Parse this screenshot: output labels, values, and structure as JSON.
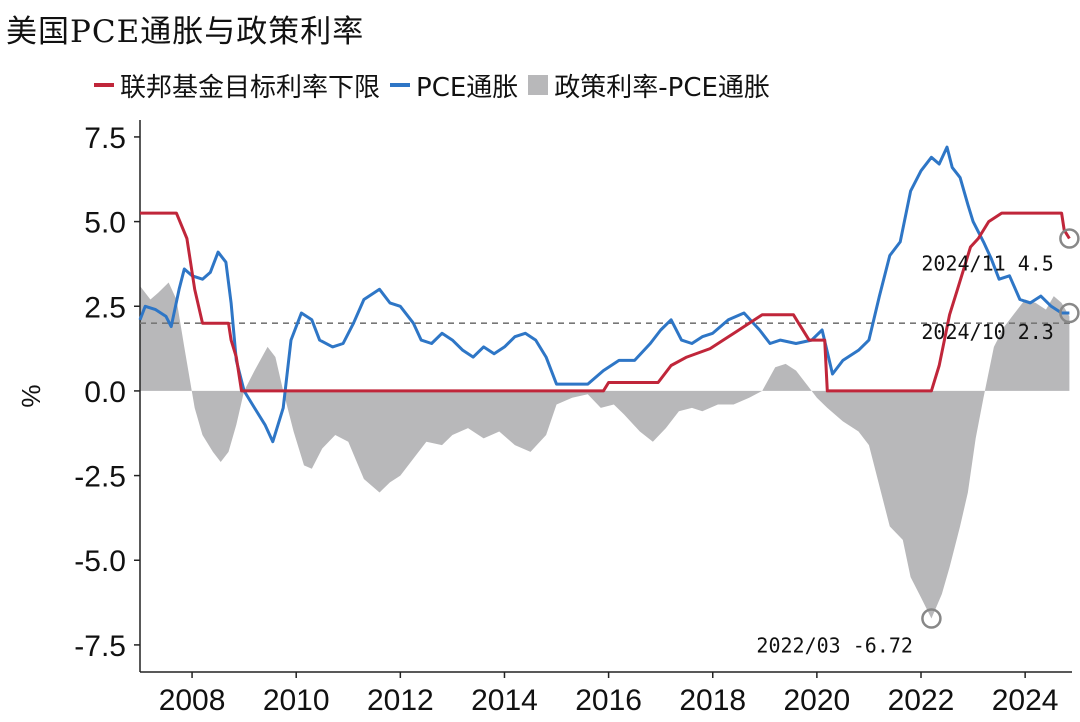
{
  "title": "美国PCE通胀与政策利率",
  "legend": [
    {
      "label": "联邦基金目标利率下限",
      "color": "#c0263a",
      "kind": "line"
    },
    {
      "label": "PCE通胀",
      "color": "#2e76c6",
      "kind": "line"
    },
    {
      "label": "政策利率-PCE通胀",
      "color": "#b8b8ba",
      "kind": "area"
    }
  ],
  "chart_data": {
    "type": "line",
    "title": "美国PCE通胀与政策利率",
    "ylabel": "%",
    "xlabel": "",
    "xlim": [
      2007.0,
      2024.9
    ],
    "ylim": [
      -8.3,
      8.0
    ],
    "x_ticks": [
      "2008",
      "2010",
      "2012",
      "2014",
      "2016",
      "2018",
      "2020",
      "2022",
      "2024"
    ],
    "y_ticks": [
      "7.5",
      "5.0",
      "2.5",
      "0.0",
      "-2.5",
      "-5.0",
      "-7.5"
    ],
    "reference_line": {
      "y": 2.0,
      "style": "dashed"
    },
    "series": [
      {
        "name": "联邦基金目标利率下限",
        "color": "#c0263a",
        "points": [
          [
            2007.0,
            5.25
          ],
          [
            2007.7,
            5.25
          ],
          [
            2007.9,
            4.5
          ],
          [
            2008.05,
            3.0
          ],
          [
            2008.2,
            2.0
          ],
          [
            2008.7,
            2.0
          ],
          [
            2008.75,
            1.5
          ],
          [
            2008.85,
            1.0
          ],
          [
            2008.95,
            0.0
          ],
          [
            2015.9,
            0.0
          ],
          [
            2016.0,
            0.25
          ],
          [
            2016.95,
            0.25
          ],
          [
            2017.2,
            0.75
          ],
          [
            2017.5,
            1.0
          ],
          [
            2017.95,
            1.25
          ],
          [
            2018.2,
            1.5
          ],
          [
            2018.45,
            1.75
          ],
          [
            2018.7,
            2.0
          ],
          [
            2018.95,
            2.25
          ],
          [
            2019.55,
            2.25
          ],
          [
            2019.65,
            2.0
          ],
          [
            2019.75,
            1.75
          ],
          [
            2019.85,
            1.5
          ],
          [
            2020.15,
            1.5
          ],
          [
            2020.2,
            0.0
          ],
          [
            2022.2,
            0.0
          ],
          [
            2022.35,
            0.75
          ],
          [
            2022.45,
            1.5
          ],
          [
            2022.55,
            2.25
          ],
          [
            2022.7,
            3.0
          ],
          [
            2022.85,
            3.75
          ],
          [
            2022.95,
            4.25
          ],
          [
            2023.1,
            4.5
          ],
          [
            2023.3,
            5.0
          ],
          [
            2023.55,
            5.25
          ],
          [
            2024.7,
            5.25
          ],
          [
            2024.75,
            4.75
          ],
          [
            2024.85,
            4.5
          ]
        ]
      },
      {
        "name": "PCE通胀",
        "color": "#2e76c6",
        "points": [
          [
            2007.0,
            2.1
          ],
          [
            2007.1,
            2.5
          ],
          [
            2007.3,
            2.4
          ],
          [
            2007.5,
            2.2
          ],
          [
            2007.6,
            1.9
          ],
          [
            2007.75,
            3.0
          ],
          [
            2007.85,
            3.6
          ],
          [
            2008.0,
            3.4
          ],
          [
            2008.2,
            3.3
          ],
          [
            2008.35,
            3.5
          ],
          [
            2008.5,
            4.1
          ],
          [
            2008.65,
            3.8
          ],
          [
            2008.75,
            2.6
          ],
          [
            2008.85,
            0.9
          ],
          [
            2009.0,
            0.0
          ],
          [
            2009.2,
            -0.5
          ],
          [
            2009.4,
            -1.0
          ],
          [
            2009.55,
            -1.5
          ],
          [
            2009.75,
            -0.5
          ],
          [
            2009.9,
            1.5
          ],
          [
            2010.1,
            2.3
          ],
          [
            2010.3,
            2.1
          ],
          [
            2010.45,
            1.5
          ],
          [
            2010.7,
            1.3
          ],
          [
            2010.9,
            1.4
          ],
          [
            2011.1,
            2.0
          ],
          [
            2011.3,
            2.7
          ],
          [
            2011.6,
            3.0
          ],
          [
            2011.8,
            2.6
          ],
          [
            2012.0,
            2.5
          ],
          [
            2012.25,
            2.0
          ],
          [
            2012.4,
            1.5
          ],
          [
            2012.6,
            1.4
          ],
          [
            2012.8,
            1.7
          ],
          [
            2013.0,
            1.5
          ],
          [
            2013.2,
            1.2
          ],
          [
            2013.4,
            1.0
          ],
          [
            2013.6,
            1.3
          ],
          [
            2013.8,
            1.1
          ],
          [
            2014.0,
            1.3
          ],
          [
            2014.2,
            1.6
          ],
          [
            2014.4,
            1.7
          ],
          [
            2014.6,
            1.5
          ],
          [
            2014.8,
            1.0
          ],
          [
            2015.0,
            0.2
          ],
          [
            2015.3,
            0.2
          ],
          [
            2015.6,
            0.2
          ],
          [
            2015.9,
            0.6
          ],
          [
            2016.2,
            0.9
          ],
          [
            2016.5,
            0.9
          ],
          [
            2016.8,
            1.4
          ],
          [
            2017.0,
            1.8
          ],
          [
            2017.2,
            2.1
          ],
          [
            2017.4,
            1.5
          ],
          [
            2017.6,
            1.4
          ],
          [
            2017.8,
            1.6
          ],
          [
            2018.0,
            1.7
          ],
          [
            2018.3,
            2.1
          ],
          [
            2018.6,
            2.3
          ],
          [
            2018.9,
            1.8
          ],
          [
            2019.1,
            1.4
          ],
          [
            2019.3,
            1.5
          ],
          [
            2019.6,
            1.4
          ],
          [
            2019.9,
            1.5
          ],
          [
            2020.1,
            1.8
          ],
          [
            2020.3,
            0.5
          ],
          [
            2020.5,
            0.9
          ],
          [
            2020.8,
            1.2
          ],
          [
            2021.0,
            1.5
          ],
          [
            2021.2,
            2.8
          ],
          [
            2021.4,
            4.0
          ],
          [
            2021.6,
            4.4
          ],
          [
            2021.8,
            5.9
          ],
          [
            2022.0,
            6.5
          ],
          [
            2022.2,
            6.9
          ],
          [
            2022.35,
            6.7
          ],
          [
            2022.5,
            7.2
          ],
          [
            2022.6,
            6.6
          ],
          [
            2022.75,
            6.3
          ],
          [
            2022.9,
            5.5
          ],
          [
            2023.0,
            5.0
          ],
          [
            2023.2,
            4.4
          ],
          [
            2023.35,
            3.9
          ],
          [
            2023.5,
            3.3
          ],
          [
            2023.7,
            3.4
          ],
          [
            2023.9,
            2.7
          ],
          [
            2024.1,
            2.6
          ],
          [
            2024.3,
            2.8
          ],
          [
            2024.5,
            2.5
          ],
          [
            2024.7,
            2.3
          ],
          [
            2024.85,
            2.3
          ]
        ]
      },
      {
        "name": "政策利率-PCE通胀",
        "color": "#b8b8ba",
        "type": "area",
        "points": [
          [
            2007.0,
            3.1
          ],
          [
            2007.2,
            2.7
          ],
          [
            2007.35,
            2.9
          ],
          [
            2007.55,
            3.2
          ],
          [
            2007.7,
            2.7
          ],
          [
            2007.85,
            1.3
          ],
          [
            2008.05,
            -0.5
          ],
          [
            2008.2,
            -1.3
          ],
          [
            2008.4,
            -1.8
          ],
          [
            2008.55,
            -2.1
          ],
          [
            2008.7,
            -1.8
          ],
          [
            2008.85,
            -1.0
          ],
          [
            2009.0,
            0.0
          ],
          [
            2009.2,
            0.6
          ],
          [
            2009.45,
            1.3
          ],
          [
            2009.6,
            1.0
          ],
          [
            2009.75,
            0.0
          ],
          [
            2009.95,
            -1.2
          ],
          [
            2010.15,
            -2.2
          ],
          [
            2010.3,
            -2.3
          ],
          [
            2010.5,
            -1.7
          ],
          [
            2010.75,
            -1.3
          ],
          [
            2011.0,
            -1.5
          ],
          [
            2011.3,
            -2.6
          ],
          [
            2011.6,
            -3.0
          ],
          [
            2011.8,
            -2.7
          ],
          [
            2012.0,
            -2.5
          ],
          [
            2012.3,
            -1.9
          ],
          [
            2012.5,
            -1.5
          ],
          [
            2012.8,
            -1.6
          ],
          [
            2013.0,
            -1.3
          ],
          [
            2013.3,
            -1.1
          ],
          [
            2013.6,
            -1.4
          ],
          [
            2013.9,
            -1.2
          ],
          [
            2014.2,
            -1.6
          ],
          [
            2014.5,
            -1.8
          ],
          [
            2014.8,
            -1.3
          ],
          [
            2015.0,
            -0.4
          ],
          [
            2015.3,
            -0.2
          ],
          [
            2015.6,
            -0.1
          ],
          [
            2015.85,
            -0.5
          ],
          [
            2016.1,
            -0.4
          ],
          [
            2016.3,
            -0.7
          ],
          [
            2016.6,
            -1.2
          ],
          [
            2016.85,
            -1.5
          ],
          [
            2017.1,
            -1.1
          ],
          [
            2017.35,
            -0.6
          ],
          [
            2017.6,
            -0.5
          ],
          [
            2017.8,
            -0.6
          ],
          [
            2018.1,
            -0.4
          ],
          [
            2018.4,
            -0.4
          ],
          [
            2018.7,
            -0.2
          ],
          [
            2018.95,
            0.0
          ],
          [
            2019.2,
            0.7
          ],
          [
            2019.4,
            0.8
          ],
          [
            2019.6,
            0.6
          ],
          [
            2019.8,
            0.2
          ],
          [
            2020.0,
            -0.2
          ],
          [
            2020.2,
            -0.5
          ],
          [
            2020.5,
            -0.9
          ],
          [
            2020.8,
            -1.2
          ],
          [
            2021.0,
            -1.6
          ],
          [
            2021.2,
            -2.8
          ],
          [
            2021.4,
            -4.0
          ],
          [
            2021.65,
            -4.4
          ],
          [
            2021.8,
            -5.5
          ],
          [
            2022.0,
            -6.1
          ],
          [
            2022.2,
            -6.72
          ],
          [
            2022.4,
            -6.0
          ],
          [
            2022.55,
            -5.2
          ],
          [
            2022.75,
            -4.0
          ],
          [
            2022.9,
            -3.0
          ],
          [
            2023.05,
            -1.4
          ],
          [
            2023.2,
            -0.2
          ],
          [
            2023.4,
            1.3
          ],
          [
            2023.6,
            1.9
          ],
          [
            2023.8,
            2.3
          ],
          [
            2024.0,
            2.7
          ],
          [
            2024.2,
            2.6
          ],
          [
            2024.4,
            2.4
          ],
          [
            2024.55,
            2.8
          ],
          [
            2024.7,
            2.6
          ],
          [
            2024.85,
            2.2
          ]
        ]
      }
    ],
    "annotations": [
      {
        "text": "2024/11  4.5",
        "x": 2024.85,
        "y": 4.5
      },
      {
        "text": "2024/10  2.3",
        "x": 2024.85,
        "y": 2.3
      },
      {
        "text": "2022/03  -6.72",
        "x": 2022.2,
        "y": -6.72
      }
    ]
  }
}
